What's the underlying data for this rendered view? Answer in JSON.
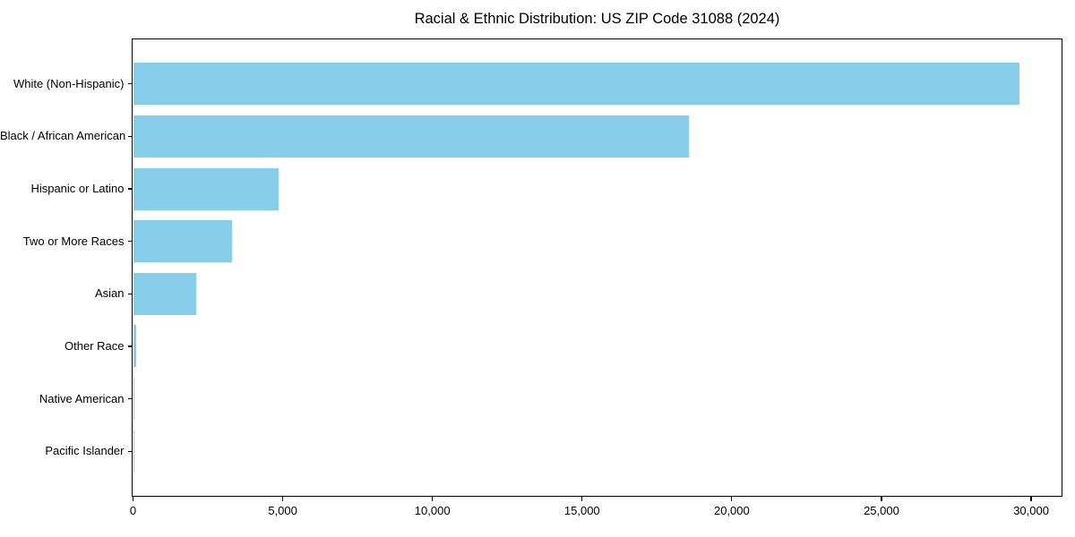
{
  "chart_data": {
    "type": "bar",
    "orientation": "horizontal",
    "title": "Racial & Ethnic Distribution: US ZIP Code 31088 (2024)",
    "categories": [
      "White (Non-Hispanic)",
      "Black / African American",
      "Hispanic or Latino",
      "Two or More Races",
      "Asian",
      "Other Race",
      "Native American",
      "Pacific Islander"
    ],
    "values": [
      29600,
      18560,
      4870,
      3300,
      2100,
      110,
      40,
      15
    ],
    "xlabel": "",
    "ylabel": "",
    "xlim": [
      0,
      31000
    ],
    "xticks": [
      0,
      5000,
      10000,
      15000,
      20000,
      25000,
      30000
    ],
    "xtick_labels": [
      "0",
      "5,000",
      "10,000",
      "15,000",
      "20,000",
      "25,000",
      "30,000"
    ],
    "bar_color": "#87CEEB",
    "axis_color": "#000000",
    "background_color": "#ffffff",
    "grid": false,
    "legend": null,
    "bar_height_fraction": 0.8
  }
}
